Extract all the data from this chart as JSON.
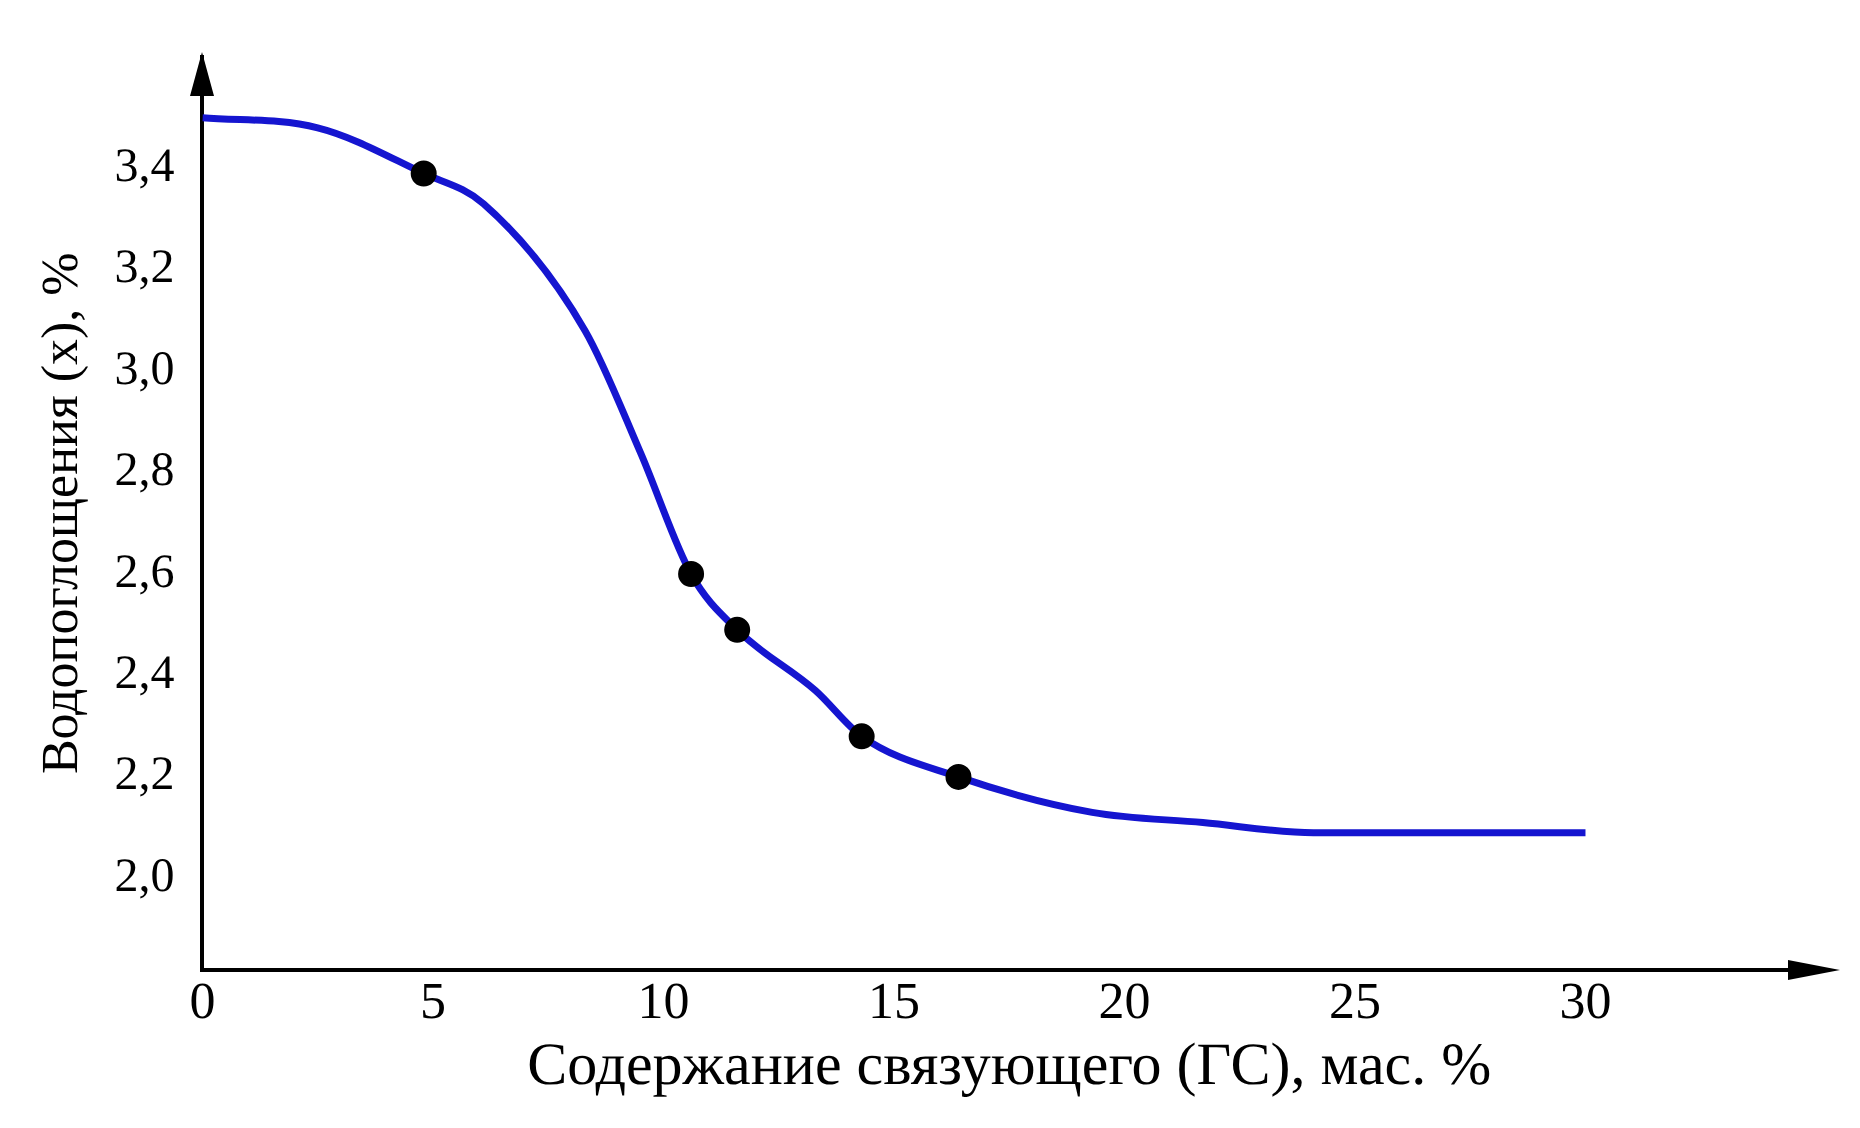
{
  "chart_data": {
    "type": "line",
    "xlabel": "Содержание связующего (ГС), мас. %",
    "ylabel": "Водопоглощения (x), %",
    "xlim": [
      0,
      35
    ],
    "xticks": [
      0,
      5,
      10,
      15,
      20,
      25,
      30
    ],
    "ylim": [
      1.82,
      3.62
    ],
    "yticks": [
      {
        "value": 2.0,
        "label": "2,0"
      },
      {
        "value": 2.2,
        "label": "2,2"
      },
      {
        "value": 2.4,
        "label": "2,4"
      },
      {
        "value": 2.6,
        "label": "2,6"
      },
      {
        "value": 2.8,
        "label": "2,8"
      },
      {
        "value": 3.0,
        "label": "3,0"
      },
      {
        "value": 3.2,
        "label": "3,2"
      },
      {
        "value": 3.4,
        "label": "3,4"
      }
    ],
    "grid": false,
    "legend": false,
    "series": [
      {
        "type": "line",
        "color": "#1515d0",
        "marker": "none",
        "line_style": "solid",
        "x": [
          0,
          2.5,
          4.8,
          6.1,
          8.3,
          9.5,
          10.6,
          11.6,
          13.3,
          14.3,
          16.4,
          19.3,
          21.7,
          24.1,
          30
        ],
        "values": [
          3.5,
          3.48,
          3.39,
          3.33,
          3.08,
          2.84,
          2.6,
          2.49,
          2.37,
          2.28,
          2.2,
          2.13,
          2.11,
          2.09,
          2.09
        ]
      },
      {
        "type": "scatter",
        "color": "#000000",
        "marker": "circle",
        "x": [
          4.8,
          10.6,
          11.6,
          14.3,
          16.4
        ],
        "values": [
          3.39,
          2.6,
          2.49,
          2.28,
          2.2
        ]
      }
    ]
  }
}
